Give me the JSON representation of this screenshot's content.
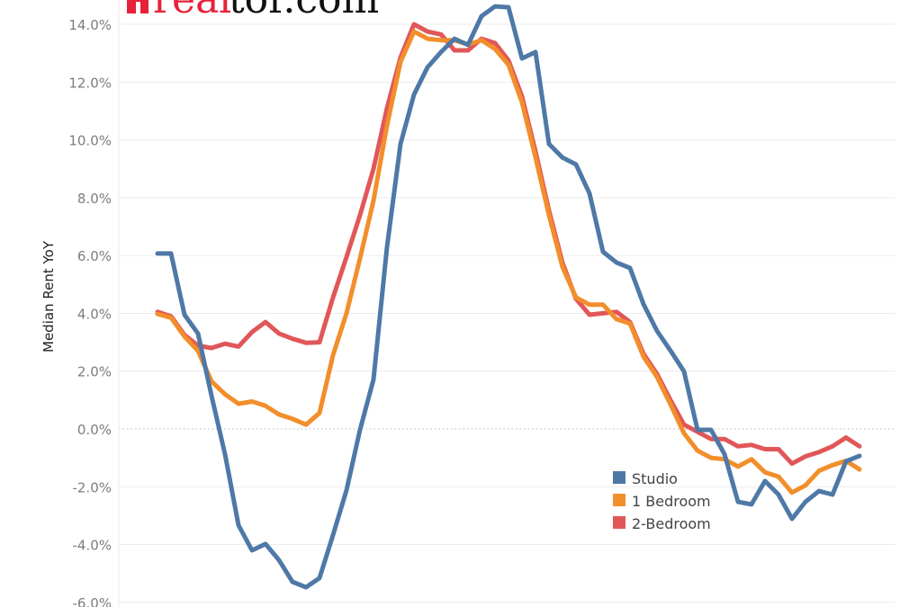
{
  "logo": {
    "text_red": "real",
    "text_black": "tor.com",
    "badge_glyph": "r",
    "brand_color": "#e8213a"
  },
  "chart_data": {
    "type": "line",
    "title": "",
    "xlabel": "",
    "ylabel": "Median Rent YoY",
    "ylim": [
      -6.0,
      14.0
    ],
    "yticks": [
      14.0,
      12.0,
      10.0,
      8.0,
      6.0,
      4.0,
      2.0,
      0.0,
      -2.0,
      -4.0,
      -6.0
    ],
    "ytick_labels": [
      "14.0%",
      "12.0%",
      "10.0%",
      "8.0%",
      "6.0%",
      "4.0%",
      "2.0%",
      "0.0%",
      "-2.0%",
      "-4.0%",
      "-6.0%"
    ],
    "grid": true,
    "zero_line": "dotted",
    "legend_position": "lower-right inside",
    "x": [
      1,
      2,
      3,
      4,
      5,
      6,
      7,
      8,
      9,
      10,
      11,
      12,
      13,
      14,
      15,
      16,
      17,
      18,
      19,
      20,
      21,
      22,
      23,
      24,
      25,
      26,
      27,
      28,
      29,
      30,
      31,
      32,
      33,
      34,
      35,
      36,
      37,
      38,
      39,
      40,
      41,
      42,
      43,
      44,
      45,
      46,
      47,
      48,
      49,
      50,
      51,
      52,
      53
    ],
    "series": [
      {
        "name": "Studio",
        "color": "#4e79a7",
        "values": [
          6.07,
          6.07,
          3.95,
          3.3,
          1.15,
          -0.87,
          -3.33,
          -4.2,
          -3.98,
          -4.54,
          -5.29,
          -5.48,
          -5.16,
          -3.67,
          -2.12,
          -0.03,
          1.71,
          6.29,
          9.86,
          11.57,
          12.51,
          13.04,
          13.5,
          13.29,
          14.28,
          14.62,
          14.59,
          12.82,
          13.04,
          9.86,
          9.39,
          9.15,
          8.15,
          6.13,
          5.76,
          5.57,
          4.32,
          3.39,
          2.71,
          1.99,
          -0.03,
          -0.03,
          -0.87,
          -2.52,
          -2.61,
          -1.8,
          -2.27,
          -3.11,
          -2.52,
          -2.15,
          -2.27,
          -1.12,
          -0.93
        ]
      },
      {
        "name": "1 Bedroom",
        "color": "#f28e2b",
        "values": [
          3.98,
          3.85,
          3.2,
          2.7,
          1.65,
          1.2,
          0.87,
          0.95,
          0.8,
          0.5,
          0.35,
          0.15,
          0.55,
          2.55,
          4.0,
          5.9,
          7.9,
          10.5,
          12.7,
          13.75,
          13.5,
          13.45,
          13.45,
          13.3,
          13.45,
          13.15,
          12.6,
          11.3,
          9.4,
          7.4,
          5.6,
          4.55,
          4.3,
          4.3,
          3.8,
          3.65,
          2.5,
          1.8,
          0.85,
          -0.15,
          -0.75,
          -1.0,
          -1.05,
          -1.3,
          -1.05,
          -1.5,
          -1.65,
          -2.2,
          -1.95,
          -1.45,
          -1.25,
          -1.1,
          -1.4
        ]
      },
      {
        "name": "2-Bedroom",
        "color": "#e15759",
        "values": [
          4.05,
          3.9,
          3.25,
          2.88,
          2.8,
          2.95,
          2.85,
          3.35,
          3.7,
          3.3,
          3.12,
          2.98,
          3.0,
          4.55,
          5.95,
          7.4,
          9.0,
          11.1,
          12.85,
          14.0,
          13.75,
          13.65,
          13.1,
          13.1,
          13.5,
          13.35,
          12.75,
          11.5,
          9.6,
          7.55,
          5.75,
          4.5,
          3.95,
          4.0,
          4.05,
          3.7,
          2.6,
          1.9,
          1.0,
          0.15,
          -0.1,
          -0.35,
          -0.35,
          -0.6,
          -0.55,
          -0.7,
          -0.7,
          -1.2,
          -0.95,
          -0.8,
          -0.6,
          -0.3,
          -0.6
        ]
      }
    ],
    "legend": [
      {
        "label": "Studio",
        "color": "#4e79a7"
      },
      {
        "label": "1 Bedroom",
        "color": "#f28e2b"
      },
      {
        "label": "2-Bedroom",
        "color": "#e15759"
      }
    ]
  }
}
